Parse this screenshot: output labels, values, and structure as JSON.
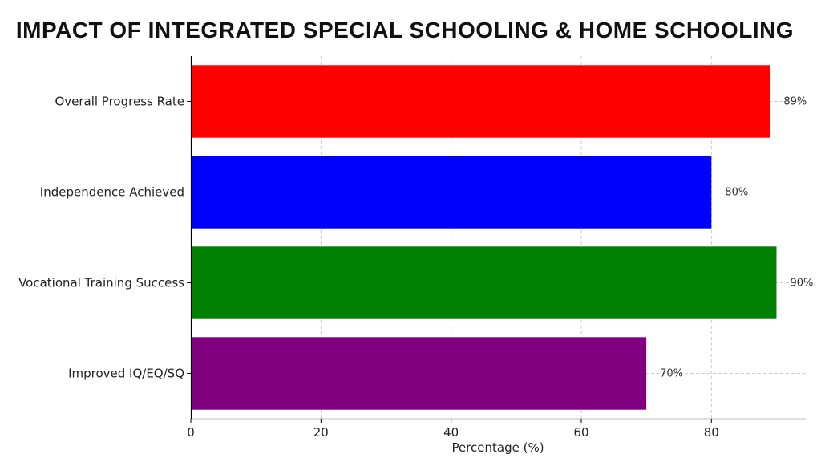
{
  "chart_data": {
    "type": "bar",
    "orientation": "horizontal",
    "title": "IMPACT OF INTEGRATED SPECIAL SCHOOLING & HOME SCHOOLING",
    "xlabel": "Percentage (%)",
    "ylabel": "",
    "categories": [
      "Overall Progress Rate",
      "Independence Achieved",
      "Vocational Training Success",
      "Improved IQ/EQ/SQ"
    ],
    "values": [
      89,
      80,
      90,
      70
    ],
    "data_labels": [
      "89%",
      "80%",
      "90%",
      "70%"
    ],
    "colors": [
      "#ff0000",
      "#0000ff",
      "#008000",
      "#800080"
    ],
    "xlim": [
      0,
      94.5
    ],
    "xticks": [
      0,
      20,
      40,
      60,
      80
    ],
    "grid": true,
    "grid_style": "dashed"
  }
}
